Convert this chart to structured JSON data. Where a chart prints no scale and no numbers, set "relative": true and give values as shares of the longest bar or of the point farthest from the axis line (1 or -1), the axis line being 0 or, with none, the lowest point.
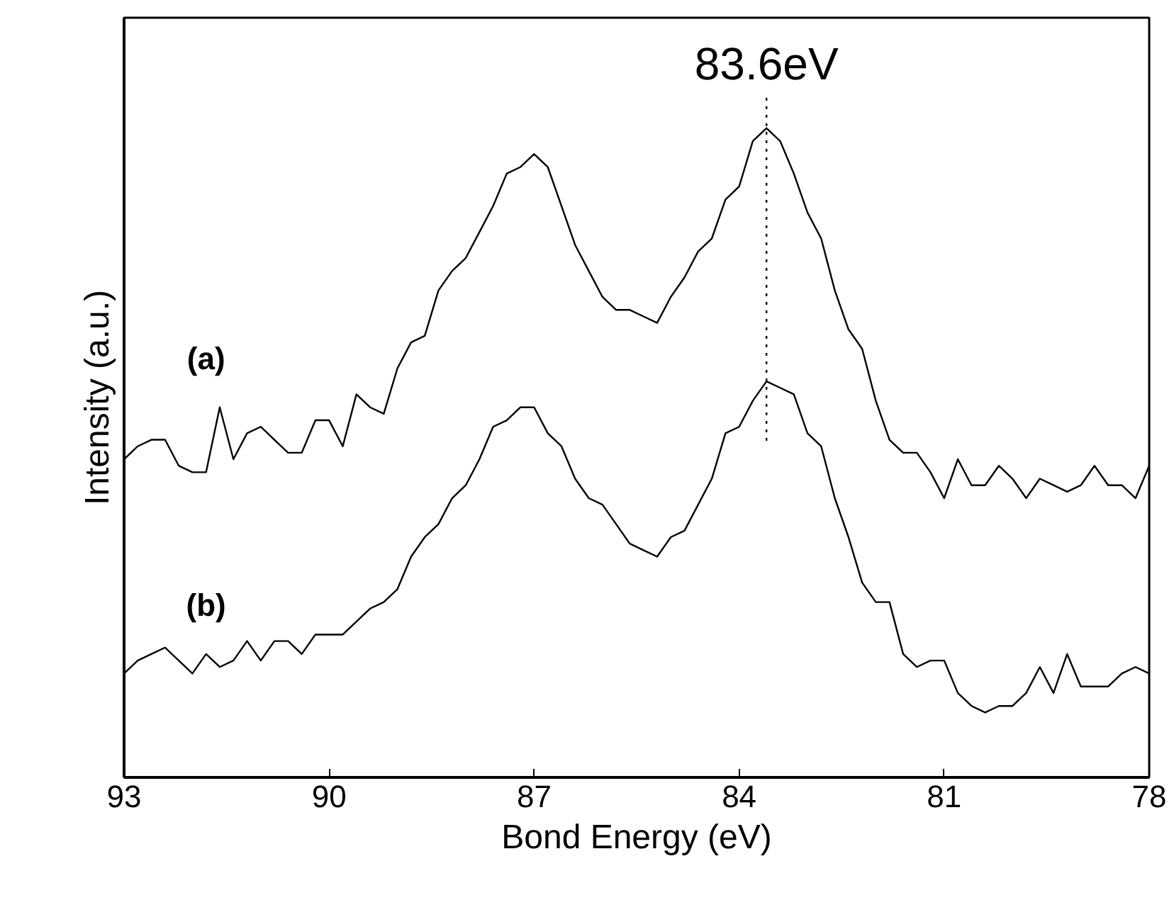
{
  "chart_data": {
    "type": "line",
    "relative": true,
    "xlabel": "Bond Energy (eV)",
    "ylabel": "Intensity (a.u.)",
    "xlim": [
      93,
      78
    ],
    "xticks": [
      93,
      90,
      87,
      84,
      81,
      78
    ],
    "grid": false,
    "marker": "none",
    "line_style": "solid",
    "x": [
      93.0,
      92.8,
      92.6,
      92.4,
      92.2,
      92.0,
      91.8,
      91.6,
      91.4,
      91.2,
      91.0,
      90.8,
      90.6,
      90.4,
      90.2,
      90.0,
      89.8,
      89.6,
      89.4,
      89.2,
      89.0,
      88.8,
      88.6,
      88.4,
      88.2,
      88.0,
      87.8,
      87.6,
      87.4,
      87.2,
      87.0,
      86.8,
      86.6,
      86.4,
      86.2,
      86.0,
      85.8,
      85.6,
      85.4,
      85.2,
      85.0,
      84.8,
      84.6,
      84.4,
      84.2,
      84.0,
      83.8,
      83.6,
      83.4,
      83.2,
      83.0,
      82.8,
      82.6,
      82.4,
      82.2,
      82.0,
      81.8,
      81.6,
      81.4,
      81.2,
      81.0,
      80.8,
      80.6,
      80.4,
      80.2,
      80.0,
      79.8,
      79.6,
      79.4,
      79.2,
      79.0,
      78.8,
      78.6,
      78.4,
      78.2,
      78.0
    ],
    "series": [
      {
        "name": "(a)",
        "color": "#000000",
        "values": [
          0.49,
          0.51,
          0.52,
          0.52,
          0.48,
          0.47,
          0.47,
          0.57,
          0.49,
          0.53,
          0.54,
          0.52,
          0.5,
          0.5,
          0.55,
          0.55,
          0.51,
          0.59,
          0.57,
          0.56,
          0.63,
          0.67,
          0.68,
          0.75,
          0.78,
          0.8,
          0.84,
          0.88,
          0.93,
          0.94,
          0.96,
          0.94,
          0.88,
          0.82,
          0.78,
          0.74,
          0.72,
          0.72,
          0.71,
          0.7,
          0.74,
          0.77,
          0.81,
          0.83,
          0.89,
          0.91,
          0.98,
          1.0,
          0.98,
          0.93,
          0.87,
          0.83,
          0.75,
          0.69,
          0.66,
          0.58,
          0.52,
          0.5,
          0.5,
          0.47,
          0.43,
          0.49,
          0.45,
          0.45,
          0.48,
          0.46,
          0.43,
          0.46,
          0.45,
          0.44,
          0.45,
          0.48,
          0.45,
          0.45,
          0.43,
          0.48
        ]
      },
      {
        "name": "(b)",
        "color": "#000000",
        "values": [
          0.16,
          0.18,
          0.19,
          0.2,
          0.18,
          0.16,
          0.19,
          0.17,
          0.18,
          0.21,
          0.18,
          0.21,
          0.21,
          0.19,
          0.22,
          0.22,
          0.22,
          0.24,
          0.26,
          0.27,
          0.29,
          0.34,
          0.37,
          0.39,
          0.43,
          0.45,
          0.49,
          0.54,
          0.55,
          0.57,
          0.57,
          0.53,
          0.51,
          0.46,
          0.43,
          0.42,
          0.39,
          0.36,
          0.35,
          0.34,
          0.37,
          0.38,
          0.42,
          0.46,
          0.53,
          0.54,
          0.58,
          0.61,
          0.6,
          0.59,
          0.53,
          0.51,
          0.43,
          0.37,
          0.3,
          0.27,
          0.27,
          0.19,
          0.17,
          0.18,
          0.18,
          0.13,
          0.11,
          0.1,
          0.11,
          0.11,
          0.13,
          0.17,
          0.13,
          0.19,
          0.14,
          0.14,
          0.14,
          0.16,
          0.17,
          0.16
        ]
      }
    ],
    "ref_lines": [
      {
        "axis": "x",
        "value": 83.6,
        "label": "83.6eV",
        "line_style": "dotted",
        "color": "#000000"
      }
    ]
  }
}
